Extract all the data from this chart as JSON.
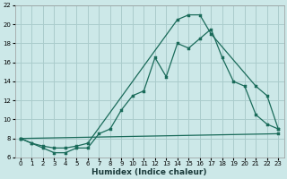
{
  "xlabel": "Humidex (Indice chaleur)",
  "bg_color": "#cce8e8",
  "grid_color": "#aacccc",
  "line_color": "#1a6b5a",
  "xlim": [
    -0.5,
    23.5
  ],
  "ylim": [
    6,
    22
  ],
  "xticks": [
    0,
    1,
    2,
    3,
    4,
    5,
    6,
    7,
    8,
    9,
    10,
    11,
    12,
    13,
    14,
    15,
    16,
    17,
    18,
    19,
    20,
    21,
    22,
    23
  ],
  "yticks": [
    6,
    8,
    10,
    12,
    14,
    16,
    18,
    20,
    22
  ],
  "line1_x": [
    0,
    1,
    2,
    3,
    4,
    5,
    6,
    7,
    8,
    9,
    10,
    11,
    12,
    13,
    14,
    15,
    16,
    17,
    18,
    19,
    20,
    21,
    22,
    23
  ],
  "line1_y": [
    8,
    7.5,
    7,
    6.5,
    6.5,
    7,
    7,
    8.5,
    9,
    11,
    12.5,
    13,
    16.5,
    14.5,
    18,
    17.5,
    18.5,
    19.5,
    16.5,
    14,
    13.5,
    10.5,
    9.5,
    9
  ],
  "line2_x": [
    0,
    1,
    2,
    3,
    4,
    5,
    6,
    14,
    15,
    16,
    17,
    21,
    22,
    23
  ],
  "line2_y": [
    8,
    7.5,
    7.2,
    7,
    7,
    7.2,
    7.5,
    20.5,
    21,
    21,
    19,
    13.5,
    12.5,
    9
  ],
  "line3_x": [
    0,
    23
  ],
  "line3_y": [
    8,
    8.5
  ]
}
